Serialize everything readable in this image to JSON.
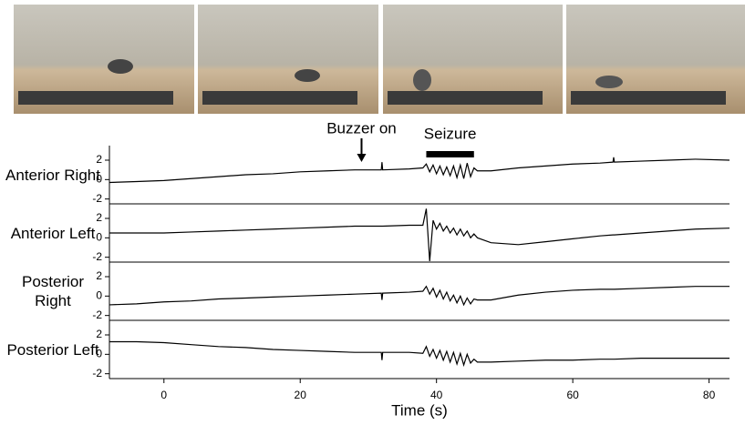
{
  "chart_data": [
    {
      "type": "line",
      "ylabel": "Anterior Right",
      "color": "#000000",
      "annotations": [
        {
          "text": "Buzzer on",
          "x": 29
        },
        {
          "text": "Seizure",
          "x_start": 38.5,
          "x_end": 45.5
        }
      ],
      "xlim": [
        -8,
        83
      ],
      "ylim": [
        -2.5,
        3.5
      ],
      "yticks": [
        2,
        0,
        -2
      ],
      "x": [
        -8,
        -4,
        0,
        4,
        8,
        12,
        16,
        20,
        24,
        28,
        31.9,
        32,
        32.1,
        36,
        38,
        38.5,
        39,
        39.5,
        40,
        40.5,
        41,
        41.5,
        42,
        42.5,
        43,
        43.5,
        44,
        44.5,
        45,
        45.5,
        46,
        48,
        52,
        56,
        60,
        64,
        65.9,
        66,
        66.1,
        70,
        74,
        78,
        83
      ],
      "values": [
        -0.3,
        -0.2,
        -0.1,
        0.1,
        0.3,
        0.5,
        0.6,
        0.8,
        0.9,
        1.0,
        1.0,
        1.8,
        1.0,
        1.1,
        1.2,
        1.6,
        0.8,
        1.5,
        0.6,
        1.4,
        0.5,
        1.3,
        0.4,
        1.4,
        0.2,
        1.5,
        0.1,
        1.7,
        0.3,
        1.2,
        0.9,
        0.9,
        1.2,
        1.4,
        1.6,
        1.7,
        1.8,
        2.3,
        1.8,
        1.9,
        2.0,
        2.1,
        2.0
      ]
    },
    {
      "type": "line",
      "ylabel": "Anterior Left",
      "color": "#000000",
      "xlim": [
        -8,
        83
      ],
      "ylim": [
        -2.5,
        3.5
      ],
      "yticks": [
        2,
        0,
        -2
      ],
      "x": [
        -8,
        -4,
        0,
        4,
        8,
        12,
        16,
        20,
        24,
        28,
        31.9,
        32,
        32.1,
        36,
        38,
        38.5,
        39,
        39.5,
        40,
        40.5,
        41,
        41.5,
        42,
        42.5,
        43,
        43.5,
        44,
        44.5,
        45,
        45.5,
        46,
        48,
        52,
        56,
        60,
        64,
        65.9,
        66,
        66.1,
        70,
        74,
        78,
        83
      ],
      "values": [
        0.5,
        0.5,
        0.5,
        0.6,
        0.7,
        0.8,
        0.9,
        1.0,
        1.1,
        1.2,
        1.2,
        1.2,
        1.2,
        1.3,
        1.3,
        3.0,
        -2.4,
        1.8,
        0.9,
        1.5,
        0.7,
        1.2,
        0.5,
        1.0,
        0.3,
        0.9,
        0.2,
        0.7,
        0.0,
        0.4,
        0.0,
        -0.5,
        -0.7,
        -0.4,
        -0.1,
        0.2,
        0.3,
        0.3,
        0.3,
        0.5,
        0.7,
        0.9,
        1.0
      ]
    },
    {
      "type": "line",
      "ylabel": "Posterior Right",
      "color": "#000000",
      "xlim": [
        -8,
        83
      ],
      "ylim": [
        -2.5,
        3.5
      ],
      "yticks": [
        2,
        0,
        -2
      ],
      "x": [
        -8,
        -4,
        0,
        4,
        8,
        12,
        16,
        20,
        24,
        28,
        31.9,
        32,
        32.1,
        36,
        38,
        38.5,
        39,
        39.5,
        40,
        40.5,
        41,
        41.5,
        42,
        42.5,
        43,
        43.5,
        44,
        44.5,
        45,
        45.5,
        46,
        48,
        52,
        56,
        60,
        64,
        65.9,
        66,
        66.1,
        70,
        74,
        78,
        83
      ],
      "values": [
        -0.9,
        -0.8,
        -0.6,
        -0.5,
        -0.3,
        -0.2,
        -0.1,
        0.0,
        0.1,
        0.2,
        0.3,
        -0.4,
        0.3,
        0.4,
        0.5,
        1.0,
        0.2,
        0.8,
        -0.1,
        0.6,
        -0.3,
        0.4,
        -0.5,
        0.1,
        -0.7,
        0.0,
        -0.9,
        -0.2,
        -0.8,
        -0.3,
        -0.4,
        -0.4,
        0.1,
        0.4,
        0.6,
        0.7,
        0.7,
        0.7,
        0.7,
        0.8,
        0.9,
        1.0,
        1.0
      ]
    },
    {
      "type": "line",
      "ylabel": "Posterior Left",
      "color": "#000000",
      "xlabel": "Time (s)",
      "xlim": [
        -8,
        83
      ],
      "xticks": [
        0,
        20,
        40,
        60,
        80
      ],
      "ylim": [
        -2.5,
        3.5
      ],
      "yticks": [
        2,
        0,
        -2
      ],
      "x": [
        -8,
        -4,
        0,
        4,
        8,
        12,
        16,
        20,
        24,
        28,
        31.9,
        32,
        32.1,
        36,
        38,
        38.5,
        39,
        39.5,
        40,
        40.5,
        41,
        41.5,
        42,
        42.5,
        43,
        43.5,
        44,
        44.5,
        45,
        45.5,
        46,
        48,
        52,
        56,
        60,
        64,
        65.9,
        66,
        66.1,
        70,
        74,
        78,
        83
      ],
      "values": [
        1.3,
        1.3,
        1.2,
        1.0,
        0.8,
        0.7,
        0.5,
        0.4,
        0.3,
        0.2,
        0.2,
        -0.6,
        0.2,
        0.2,
        0.1,
        0.8,
        -0.2,
        0.5,
        -0.4,
        0.4,
        -0.6,
        0.3,
        -0.8,
        0.2,
        -1.0,
        0.1,
        -1.1,
        0.0,
        -0.9,
        -0.5,
        -0.8,
        -0.8,
        -0.7,
        -0.6,
        -0.6,
        -0.5,
        -0.5,
        -0.5,
        -0.5,
        -0.4,
        -0.4,
        -0.4,
        -0.4
      ]
    }
  ]
}
